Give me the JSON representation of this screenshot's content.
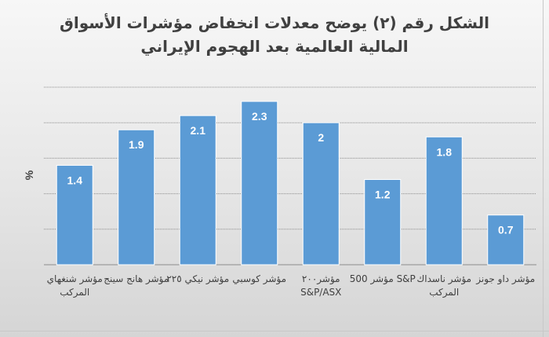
{
  "chart_data": {
    "type": "bar",
    "title_line1": "الشكل رقم (٢) يوضح معدلات انخفاض مؤشرات الأسواق",
    "title_line2": "المالية العالمية بعد الهجوم الإيراني",
    "ylabel": "%",
    "ylim": [
      0,
      2.5
    ],
    "grid": true,
    "categories": [
      "مؤشر شنغهاي المركب",
      "مؤشر هانج سينج",
      "مؤشر نيكي ٢٢٥",
      "مؤشر كوسبي",
      "مؤشر٢٠٠ S&P/ASX",
      "S&P مؤشر 500",
      "مؤشر ناسداك المركب",
      "مؤشر داو جونز"
    ],
    "values": [
      1.4,
      1.9,
      2.1,
      2.3,
      2.0,
      1.2,
      1.8,
      0.7
    ],
    "value_labels": [
      "1.4",
      "1.9",
      "2.1",
      "2.3",
      "2",
      "1.2",
      "1.8",
      "0.7"
    ],
    "colors": {
      "bar": "#5b9bd5",
      "bar_border": "#ffffff",
      "gridline": "#8c8c8c",
      "label": "#ffffff",
      "text": "#404040"
    }
  }
}
